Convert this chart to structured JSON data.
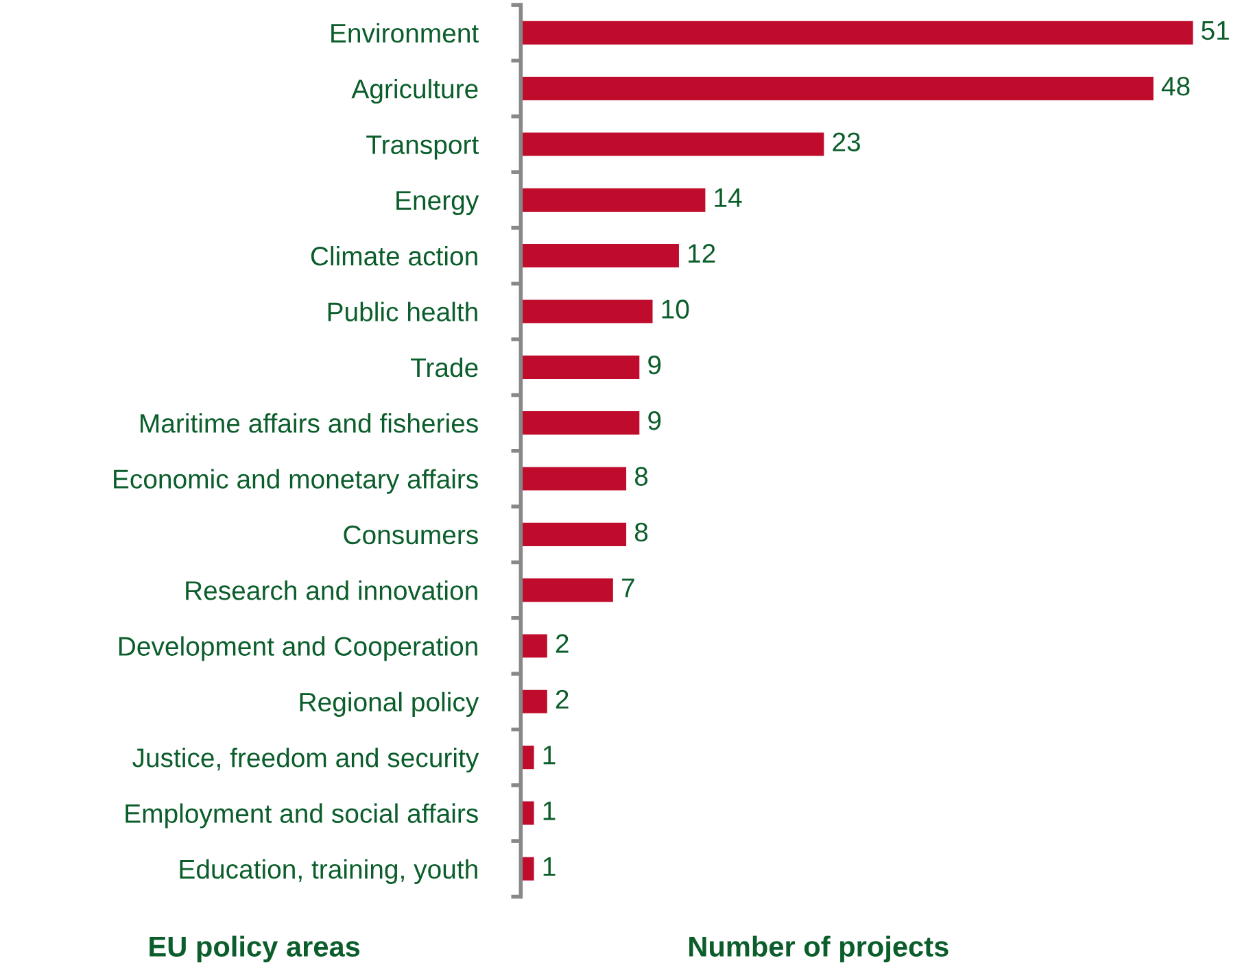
{
  "chart_data": {
    "type": "bar",
    "orientation": "horizontal",
    "categories": [
      "Environment",
      "Agriculture",
      "Transport",
      "Energy",
      "Climate action",
      "Public health",
      "Trade",
      "Maritime affairs and fisheries",
      "Economic and monetary affairs",
      "Consumers",
      "Research and innovation",
      "Development and Cooperation",
      "Regional policy",
      "Justice, freedom and security",
      "Employment and social affairs",
      "Education, training, youth"
    ],
    "values": [
      51,
      48,
      23,
      14,
      12,
      10,
      9,
      9,
      8,
      8,
      7,
      2,
      2,
      1,
      1,
      1
    ],
    "color": "#c00c2c",
    "data_labels": true,
    "xlabel": "Number of projects",
    "ylabel": "EU policy areas",
    "tick_labels": "y",
    "grid": false,
    "legend": false
  }
}
